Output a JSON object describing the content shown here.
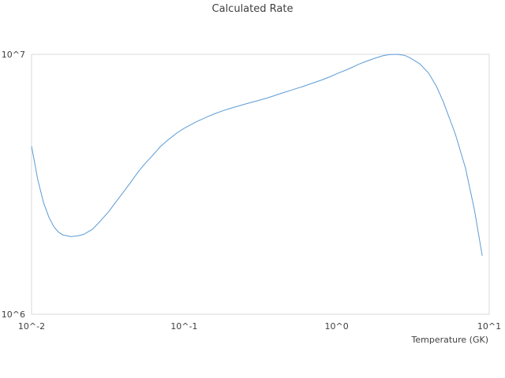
{
  "chart_data": {
    "type": "line",
    "title": "Calculated Rate",
    "xlabel": "Temperature (GK)",
    "ylabel": "",
    "x_scale": "log",
    "y_scale": "log",
    "xlim": [
      0.01,
      10
    ],
    "ylim": [
      1000000,
      10000000
    ],
    "x_tick_labels": [
      "10^-2",
      "10^-1",
      "10^0",
      "10^1"
    ],
    "y_tick_labels": [
      "10^6",
      "10^7"
    ],
    "grid": false,
    "legend": "none",
    "line_color": "#5b9bd5",
    "border_color": "#d9d9d9",
    "series": [
      {
        "x": [
          0.01,
          0.011,
          0.012,
          0.013,
          0.014,
          0.015,
          0.016,
          0.018,
          0.02,
          0.022,
          0.025,
          0.028,
          0.032,
          0.036,
          0.04,
          0.045,
          0.05,
          0.055,
          0.06,
          0.07,
          0.08,
          0.09,
          0.1,
          0.12,
          0.14,
          0.16,
          0.18,
          0.2,
          0.25,
          0.3,
          0.35,
          0.4,
          0.45,
          0.5,
          0.6,
          0.7,
          0.8,
          0.9,
          1.0,
          1.2,
          1.4,
          1.6,
          1.8,
          2.0,
          2.2,
          2.5,
          2.8,
          3.0,
          3.5,
          4.0,
          4.5,
          5.0,
          6.0,
          7.0,
          8.0,
          9.0
        ],
        "y": [
          4430000,
          3280000,
          2680000,
          2360000,
          2170000,
          2070000,
          2020000,
          1990000,
          2000000,
          2030000,
          2120000,
          2270000,
          2480000,
          2720000,
          2950000,
          3240000,
          3530000,
          3780000,
          3990000,
          4420000,
          4730000,
          4990000,
          5190000,
          5500000,
          5730000,
          5920000,
          6070000,
          6190000,
          6430000,
          6620000,
          6790000,
          6970000,
          7130000,
          7270000,
          7520000,
          7760000,
          7970000,
          8190000,
          8420000,
          8790000,
          9170000,
          9450000,
          9680000,
          9870000,
          9970000,
          10000000,
          9900000,
          9720000,
          9200000,
          8480000,
          7550000,
          6570000,
          4930000,
          3640000,
          2520000,
          1680000
        ]
      }
    ]
  }
}
